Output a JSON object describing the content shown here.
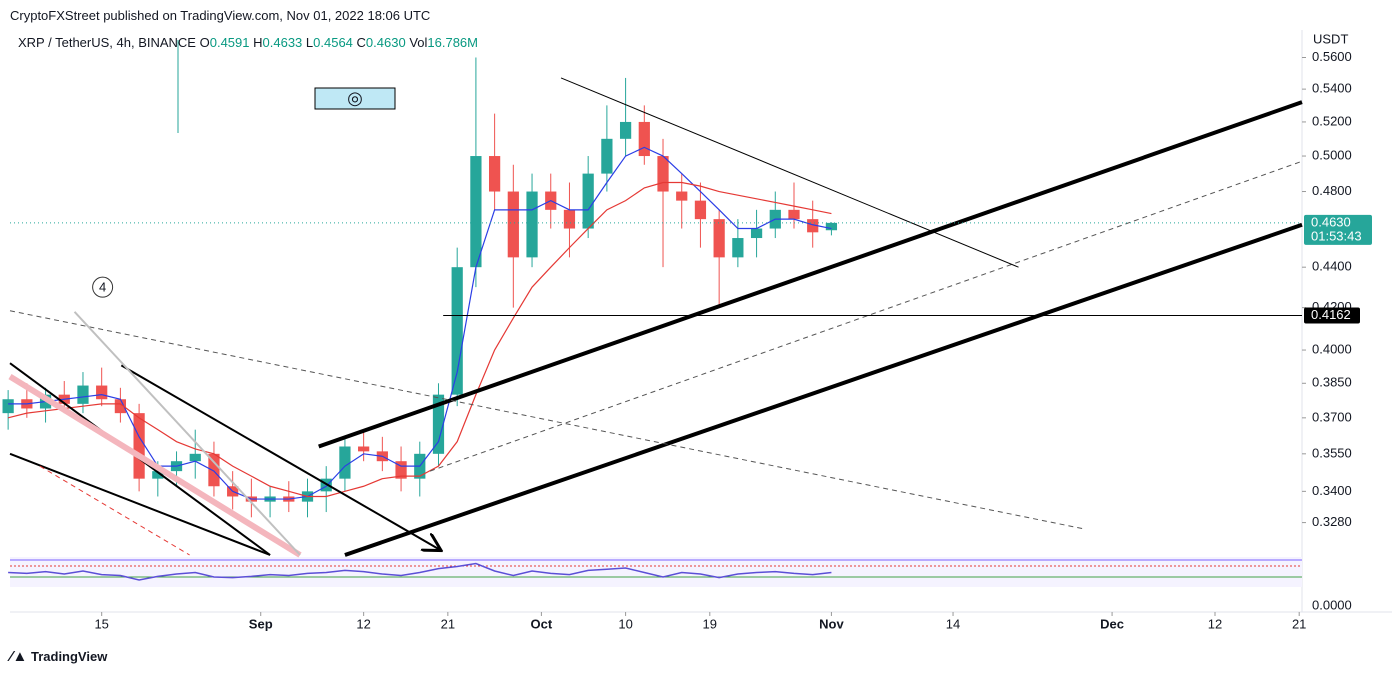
{
  "published": "CryptoFXStreet published on TradingView.com, Nov 01, 2022 18:06 UTC",
  "symbol": "XRP / TetherUS, 4h, BINANCE",
  "ohlc_labels": {
    "o": "O",
    "o_value": "0.4591",
    "h": "H",
    "h_value": "0.4633",
    "l": "L",
    "l_value": "0.4564",
    "c": "C",
    "c_value": "0.4630",
    "vol": "Vol",
    "vol_value": "16.786M"
  },
  "footer": "TradingView",
  "chart_data": {
    "type": "candlestick",
    "currency": "USDT",
    "log_scale": true,
    "up_color": "#26a69a",
    "down_color": "#ef5350",
    "x": [
      -27,
      -25,
      -23,
      -21,
      -19,
      -17,
      -15,
      -13,
      -11,
      -9,
      -7,
      -5,
      -3,
      -1,
      1,
      3,
      5,
      7,
      9,
      11,
      13,
      15,
      17,
      19,
      21,
      23,
      25,
      27,
      29,
      31,
      33,
      35,
      37,
      39,
      41,
      43,
      45,
      47,
      49,
      51,
      53,
      55,
      57,
      59,
      61
    ],
    "ohlc": [
      [
        0.372,
        0.382,
        0.365,
        0.378
      ],
      [
        0.378,
        0.385,
        0.37,
        0.374
      ],
      [
        0.374,
        0.383,
        0.368,
        0.38
      ],
      [
        0.38,
        0.386,
        0.372,
        0.376
      ],
      [
        0.376,
        0.39,
        0.372,
        0.384
      ],
      [
        0.384,
        0.392,
        0.375,
        0.378
      ],
      [
        0.378,
        0.383,
        0.368,
        0.372
      ],
      [
        0.372,
        0.376,
        0.34,
        0.345
      ],
      [
        0.345,
        0.352,
        0.338,
        0.348
      ],
      [
        0.348,
        0.356,
        0.342,
        0.352
      ],
      [
        0.352,
        0.365,
        0.345,
        0.355
      ],
      [
        0.355,
        0.36,
        0.338,
        0.342
      ],
      [
        0.342,
        0.348,
        0.333,
        0.338
      ],
      [
        0.338,
        0.345,
        0.33,
        0.336
      ],
      [
        0.336,
        0.342,
        0.33,
        0.338
      ],
      [
        0.338,
        0.344,
        0.332,
        0.336
      ],
      [
        0.336,
        0.345,
        0.33,
        0.34
      ],
      [
        0.34,
        0.35,
        0.332,
        0.345
      ],
      [
        0.345,
        0.362,
        0.34,
        0.358
      ],
      [
        0.358,
        0.365,
        0.352,
        0.356
      ],
      [
        0.356,
        0.362,
        0.348,
        0.352
      ],
      [
        0.352,
        0.358,
        0.34,
        0.345
      ],
      [
        0.345,
        0.36,
        0.338,
        0.355
      ],
      [
        0.355,
        0.385,
        0.35,
        0.38
      ],
      [
        0.38,
        0.45,
        0.375,
        0.44
      ],
      [
        0.44,
        0.56,
        0.43,
        0.5
      ],
      [
        0.5,
        0.525,
        0.47,
        0.48
      ],
      [
        0.48,
        0.495,
        0.42,
        0.445
      ],
      [
        0.445,
        0.49,
        0.44,
        0.48
      ],
      [
        0.48,
        0.49,
        0.46,
        0.47
      ],
      [
        0.47,
        0.485,
        0.445,
        0.46
      ],
      [
        0.46,
        0.5,
        0.455,
        0.49
      ],
      [
        0.49,
        0.53,
        0.48,
        0.51
      ],
      [
        0.51,
        0.547,
        0.5,
        0.52
      ],
      [
        0.52,
        0.53,
        0.495,
        0.5
      ],
      [
        0.5,
        0.51,
        0.44,
        0.48
      ],
      [
        0.48,
        0.49,
        0.46,
        0.475
      ],
      [
        0.475,
        0.485,
        0.45,
        0.465
      ],
      [
        0.465,
        0.47,
        0.42,
        0.445
      ],
      [
        0.445,
        0.465,
        0.44,
        0.455
      ],
      [
        0.455,
        0.47,
        0.445,
        0.46
      ],
      [
        0.46,
        0.48,
        0.455,
        0.47
      ],
      [
        0.47,
        0.485,
        0.46,
        0.465
      ],
      [
        0.465,
        0.475,
        0.45,
        0.458
      ],
      [
        0.4591,
        0.4633,
        0.4564,
        0.463
      ]
    ],
    "moving_averages": [
      {
        "color": "#2b3ee6",
        "values": [
          0.376,
          0.376,
          0.377,
          0.378,
          0.379,
          0.38,
          0.378,
          0.362,
          0.35,
          0.35,
          0.352,
          0.348,
          0.34,
          0.337,
          0.337,
          0.337,
          0.338,
          0.342,
          0.35,
          0.355,
          0.354,
          0.35,
          0.35,
          0.36,
          0.39,
          0.44,
          0.47,
          0.47,
          0.47,
          0.475,
          0.47,
          0.47,
          0.485,
          0.5,
          0.505,
          0.5,
          0.49,
          0.48,
          0.47,
          0.46,
          0.46,
          0.465,
          0.465,
          0.462,
          0.46
        ]
      },
      {
        "color": "#e53935",
        "values": [
          0.37,
          0.372,
          0.373,
          0.374,
          0.375,
          0.376,
          0.376,
          0.37,
          0.365,
          0.36,
          0.357,
          0.355,
          0.35,
          0.346,
          0.342,
          0.34,
          0.338,
          0.338,
          0.34,
          0.342,
          0.345,
          0.346,
          0.346,
          0.35,
          0.36,
          0.38,
          0.4,
          0.415,
          0.43,
          0.44,
          0.45,
          0.46,
          0.47,
          0.475,
          0.482,
          0.485,
          0.485,
          0.483,
          0.48,
          0.478,
          0.476,
          0.474,
          0.472,
          0.47,
          0.468
        ]
      }
    ],
    "rsi": {
      "color": "#5b4fd6",
      "ylim": [
        0,
        100
      ],
      "values": [
        55,
        52,
        58,
        50,
        60,
        48,
        45,
        30,
        42,
        50,
        55,
        40,
        38,
        42,
        48,
        45,
        52,
        55,
        62,
        58,
        50,
        45,
        55,
        68,
        75,
        85,
        60,
        45,
        60,
        52,
        48,
        62,
        66,
        70,
        55,
        40,
        55,
        50,
        38,
        50,
        55,
        58,
        52,
        48,
        55
      ]
    },
    "xlim": [
      -26.8,
      111.3
    ],
    "ylim": [
      0.316,
      0.578
    ],
    "xticks": [
      {
        "value": -17,
        "label": "15"
      },
      {
        "value": 0,
        "label": "Sep"
      },
      {
        "value": 11,
        "label": "12"
      },
      {
        "value": 20,
        "label": "21"
      },
      {
        "value": 30,
        "label": "Oct"
      },
      {
        "value": 39,
        "label": "10"
      },
      {
        "value": 48,
        "label": "19"
      },
      {
        "value": 61,
        "label": "Nov"
      },
      {
        "value": 74,
        "label": "14"
      },
      {
        "value": 91,
        "label": "Dec"
      },
      {
        "value": 102,
        "label": "12"
      },
      {
        "value": 111,
        "label": "21"
      }
    ],
    "yticks": [
      {
        "value": 0.56,
        "label": "0.5600"
      },
      {
        "value": 0.54,
        "label": "0.5400"
      },
      {
        "value": 0.52,
        "label": "0.5200"
      },
      {
        "value": 0.5,
        "label": "0.5000"
      },
      {
        "value": 0.48,
        "label": "0.4800"
      },
      {
        "value": 0.44,
        "label": "0.4400"
      },
      {
        "value": 0.42,
        "label": "0.4200"
      },
      {
        "value": 0.4,
        "label": "0.4000"
      },
      {
        "value": 0.385,
        "label": "0.3850"
      },
      {
        "value": 0.37,
        "label": "0.3700"
      },
      {
        "value": 0.355,
        "label": "0.3550"
      },
      {
        "value": 0.34,
        "label": "0.3400"
      },
      {
        "value": 0.328,
        "label": "0.3280"
      }
    ],
    "lower_tick": {
      "value": 0,
      "label": "0.0000"
    },
    "last_price": {
      "value": 0.463,
      "label": "0.4630",
      "countdown": "01:53:43",
      "color": "#26a69a"
    },
    "level": {
      "value": 0.4162,
      "label": "0.4162",
      "from": 19.5
    },
    "drawings": [
      {
        "x": [
          6.2,
          111.3
        ],
        "y": [
          0.358,
          0.532
        ],
        "color": "#000",
        "width": 4,
        "dash": false
      },
      {
        "x": [
          9.0,
          111.3
        ],
        "y": [
          0.316,
          0.462
        ],
        "color": "#000",
        "width": 4,
        "dash": false
      },
      {
        "x": [
          18.1,
          111.3
        ],
        "y": [
          0.348,
          0.497
        ],
        "color": "#555",
        "width": 1,
        "dash": true
      },
      {
        "x": [
          32.1,
          81.0
        ],
        "y": [
          0.547,
          0.44
        ],
        "color": "#000",
        "width": 1,
        "dash": false
      },
      {
        "x": [
          -26.8,
          87.9
        ],
        "y": [
          0.4185,
          0.3257
        ],
        "color": "#555",
        "width": 1,
        "dash": true
      },
      {
        "x": [
          -26.8,
          1.0
        ],
        "y": [
          0.394,
          0.316
        ],
        "color": "#000",
        "width": 2,
        "dash": false
      },
      {
        "x": [
          -26.8,
          1.0
        ],
        "y": [
          0.355,
          0.316
        ],
        "color": "#000",
        "width": 2,
        "dash": false
      },
      {
        "x": [
          -14.9,
          19.1
        ],
        "y": [
          0.393,
          0.318
        ],
        "color": "#000",
        "width": 2,
        "dash": false,
        "arrow": true
      },
      {
        "x": [
          -26.8,
          4.2
        ],
        "y": [
          0.388,
          0.316
        ],
        "color": "#f4b6bd",
        "width": 6,
        "dash": false
      },
      {
        "x": [
          -19.9,
          4.2
        ],
        "y": [
          0.418,
          0.316
        ],
        "color": "#c0c0c0",
        "width": 2,
        "dash": false
      },
      {
        "x": [
          -23.6,
          -7.6
        ],
        "y": [
          0.35,
          0.316
        ],
        "color": "#e53935",
        "width": 1,
        "dash": true
      }
    ],
    "wave_label": {
      "text": "4",
      "x": -16.9,
      "y": 0.43
    }
  }
}
